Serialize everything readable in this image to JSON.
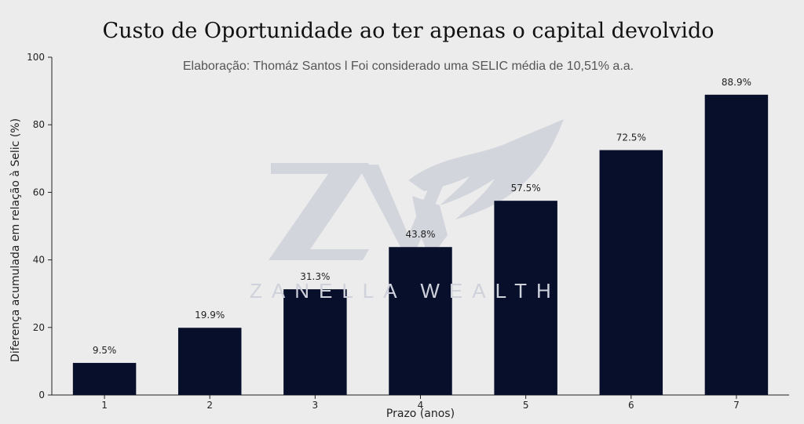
{
  "title": "Custo de Oportunidade ao ter apenas o capital devolvido",
  "subtitle": "Elaboração: Thomáz Santos l Foi considerado uma SELIC média de 10,51% a.a.",
  "watermark": {
    "text": "ZANELLA WEALTH",
    "logo_icon": "zw-eagle-logo-icon"
  },
  "colors": {
    "bar": "#070f2b",
    "background": "#ececec",
    "watermark": "#cfd1db"
  },
  "chart_data": {
    "type": "bar",
    "categories": [
      "1",
      "2",
      "3",
      "4",
      "5",
      "6",
      "7"
    ],
    "values": [
      9.5,
      19.9,
      31.3,
      43.8,
      57.5,
      72.5,
      88.9
    ],
    "data_labels": [
      "9.5%",
      "19.9%",
      "31.3%",
      "43.8%",
      "57.5%",
      "72.5%",
      "88.9%"
    ],
    "xlabel": "Prazo (anos)",
    "ylabel": "Diferença acumulada em relação à Selic (%)",
    "ylim": [
      0,
      100
    ],
    "yticks": [
      0,
      20,
      40,
      60,
      80,
      100
    ],
    "grid": false,
    "legend": "none"
  }
}
